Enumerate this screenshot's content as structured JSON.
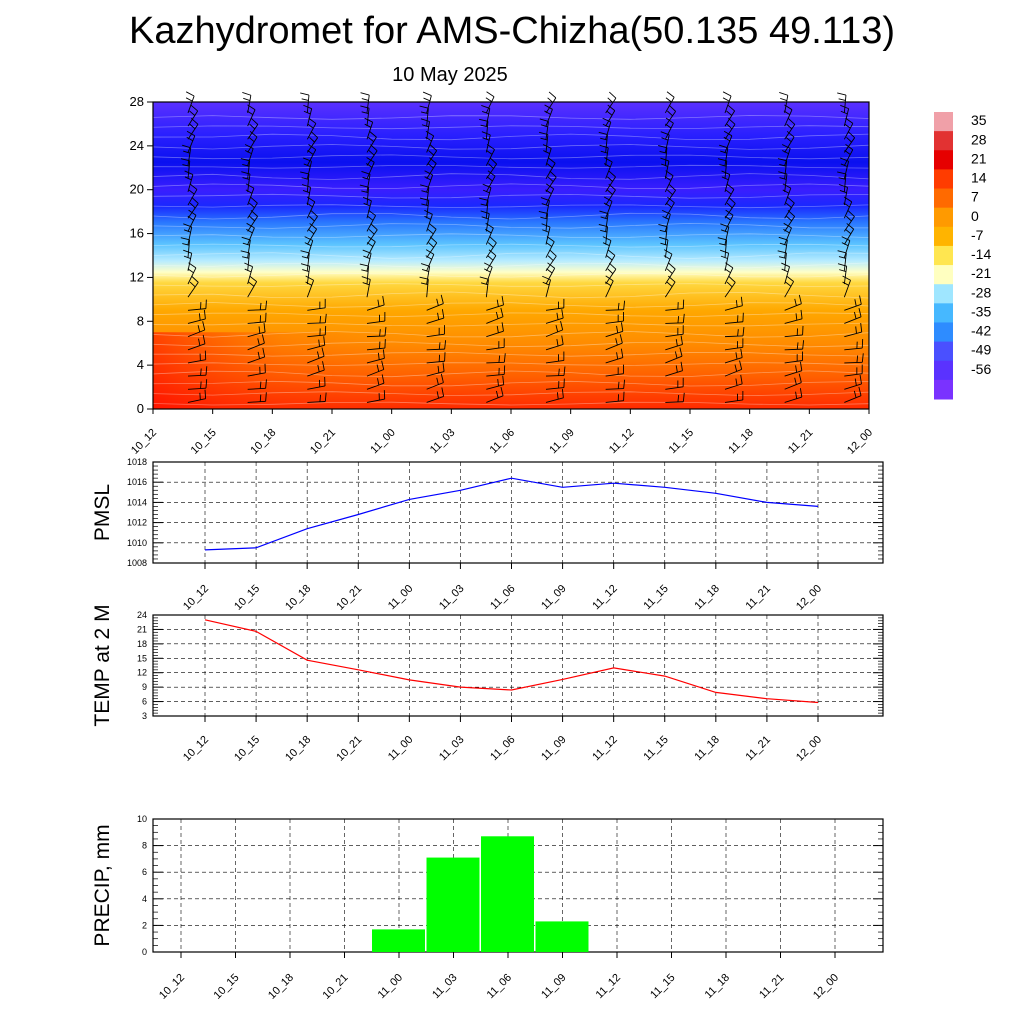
{
  "page": {
    "title": "Kazhydromet for AMS-Chizha(50.135 49.113)",
    "date": "10 May 2025"
  },
  "time_labels": [
    "10_12",
    "10_15",
    "10_18",
    "10_21",
    "11_00",
    "11_03",
    "11_06",
    "11_09",
    "11_12",
    "11_15",
    "11_18",
    "11_21",
    "12_00"
  ],
  "chart_data": [
    {
      "type": "heatmap",
      "name": "temperature-wind cross-section",
      "x": [
        "10_12",
        "10_15",
        "10_18",
        "10_21",
        "11_00",
        "11_03",
        "11_06",
        "11_09",
        "11_12",
        "11_15",
        "11_18",
        "11_21",
        "12_00"
      ],
      "ylim": [
        0,
        28
      ],
      "yticks": [
        0,
        4,
        8,
        12,
        16,
        20,
        24,
        28
      ],
      "colorbar": {
        "labels": [
          "35",
          "28",
          "21",
          "14",
          "7",
          "0",
          "-7",
          "-14",
          "-21",
          "-28",
          "-35",
          "-42",
          "-49",
          "-56"
        ],
        "colors": [
          "#f0a0a8",
          "#e23232",
          "#e60000",
          "#ff3c00",
          "#ff6a00",
          "#ff9a00",
          "#ffb400",
          "#ffe650",
          "#ffffc0",
          "#9fe6ff",
          "#46b8ff",
          "#2e8cff",
          "#4a50ff",
          "#5a32ff",
          "#7a32ff"
        ]
      },
      "gradient": [
        {
          "level": 0,
          "color": "#ff2a00"
        },
        {
          "level": 3,
          "color": "#ff6000"
        },
        {
          "level": 6,
          "color": "#ff8c00"
        },
        {
          "level": 9,
          "color": "#ffa800"
        },
        {
          "level": 11.5,
          "color": "#ffd840"
        },
        {
          "level": 12.5,
          "color": "#ffffc8"
        },
        {
          "level": 13.5,
          "color": "#b8ecff"
        },
        {
          "level": 15,
          "color": "#5cc4ff"
        },
        {
          "level": 17,
          "color": "#2a78ff"
        },
        {
          "level": 18.5,
          "color": "#1a28ff"
        },
        {
          "level": 20,
          "color": "#3a1eff"
        },
        {
          "level": 22.5,
          "color": "#0a10f0"
        },
        {
          "level": 25,
          "color": "#2a20ff"
        },
        {
          "level": 28,
          "color": "#5a30ff"
        }
      ],
      "barb_levels": [
        0.6,
        1.8,
        3,
        4.2,
        5.4,
        6.6,
        7.8,
        9,
        10.2,
        11.4,
        12.6,
        13.8,
        15,
        16.2,
        17.4,
        18.6,
        19.8,
        21,
        22.2,
        23.4,
        24.6,
        25.8,
        27
      ]
    },
    {
      "type": "line",
      "ylabel": "PMSL",
      "x": [
        "10_12",
        "10_15",
        "10_18",
        "10_21",
        "11_00",
        "11_03",
        "11_06",
        "11_09",
        "11_12",
        "11_15",
        "11_18",
        "11_21",
        "12_00"
      ],
      "series": [
        {
          "values": [
            1009.3,
            1009.5,
            1011.4,
            1012.8,
            1014.3,
            1015.2,
            1016.4,
            1015.5,
            1015.9,
            1015.5,
            1014.9,
            1014.0,
            1013.6
          ],
          "color": "#0000ff"
        }
      ],
      "ylim": [
        1008,
        1018
      ],
      "yticks": [
        1008,
        1010,
        1012,
        1014,
        1016,
        1018
      ],
      "grid": true
    },
    {
      "type": "line",
      "ylabel": "TEMP at 2 M",
      "x": [
        "10_12",
        "10_15",
        "10_18",
        "10_21",
        "11_00",
        "11_03",
        "11_06",
        "11_09",
        "11_12",
        "11_15",
        "11_18",
        "11_21",
        "12_00"
      ],
      "series": [
        {
          "values": [
            23.0,
            20.6,
            14.6,
            12.6,
            10.5,
            9.0,
            8.4,
            10.6,
            13.0,
            11.3,
            7.9,
            6.6,
            5.8
          ],
          "color": "#ff0000"
        }
      ],
      "ylim": [
        3,
        24
      ],
      "yticks": [
        3,
        6,
        9,
        12,
        15,
        18,
        21,
        24
      ],
      "grid": true
    },
    {
      "type": "bar",
      "ylabel": "PRECIP, mm",
      "categories": [
        "10_12",
        "10_15",
        "10_18",
        "10_21",
        "11_00",
        "11_03",
        "11_06",
        "11_09",
        "11_12",
        "11_15",
        "11_18",
        "11_21",
        "12_00"
      ],
      "values": [
        0,
        0,
        0,
        0,
        1.7,
        7.1,
        8.7,
        2.3,
        0,
        0,
        0,
        0,
        0
      ],
      "ylim": [
        0,
        10
      ],
      "yticks": [
        0,
        2,
        4,
        6,
        8,
        10
      ],
      "color": "#00ff00",
      "grid": true
    }
  ]
}
